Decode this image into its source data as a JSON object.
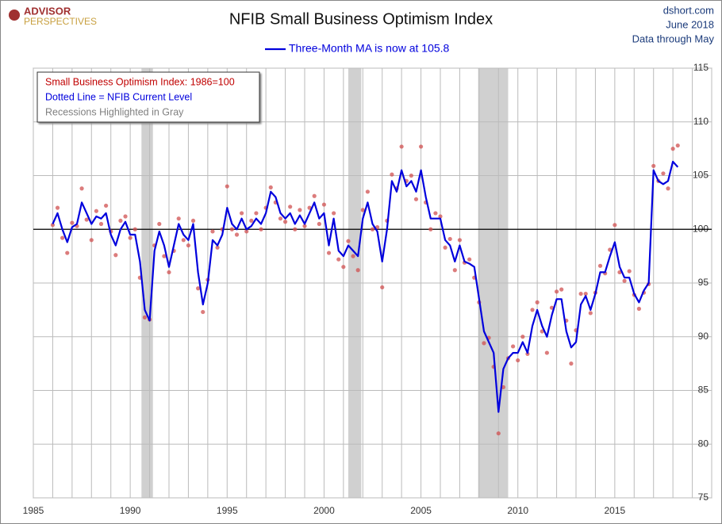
{
  "logo": {
    "line1": "ADVISOR",
    "line2": "PERSPECTIVES"
  },
  "source": {
    "site": "dshort.com",
    "date": "June 2018",
    "note": "Data through May"
  },
  "chart_data": {
    "type": "line",
    "title": "NFIB Small Business Optimism Index",
    "annotations": [
      {
        "text": "Small Business Optimism Index: 1986=100",
        "color": "#c00000"
      },
      {
        "text": "Dotted Line = NFIB Current Level",
        "color": "#0000dd"
      },
      {
        "text": "Recessions Highlighted in Gray",
        "color": "#808080"
      }
    ],
    "xlim": [
      1985,
      2020
    ],
    "xticks": [
      1985,
      1990,
      1995,
      2000,
      2005,
      2010,
      2015
    ],
    "ylim": [
      75,
      115
    ],
    "yticks": [
      75,
      80,
      85,
      90,
      95,
      100,
      105,
      110,
      115
    ],
    "grid": true,
    "refline": 100,
    "recessions": [
      [
        1990.58,
        1991.17
      ],
      [
        2001.25,
        2001.92
      ],
      [
        2007.95,
        2009.5
      ]
    ],
    "series": [
      {
        "kind": "scatter",
        "color": "#d05050",
        "x": [
          1986.0,
          1986.25,
          1986.5,
          1986.75,
          1987.0,
          1987.25,
          1987.5,
          1987.75,
          1988.0,
          1988.25,
          1988.5,
          1988.75,
          1989.0,
          1989.25,
          1989.5,
          1989.75,
          1990.0,
          1990.25,
          1990.5,
          1990.75,
          1991.0,
          1991.25,
          1991.5,
          1991.75,
          1992.0,
          1992.25,
          1992.5,
          1992.75,
          1993.0,
          1993.25,
          1993.5,
          1993.75,
          1994.0,
          1994.25,
          1994.5,
          1994.75,
          1995.0,
          1995.25,
          1995.5,
          1995.75,
          1996.0,
          1996.25,
          1996.5,
          1996.75,
          1997.0,
          1997.25,
          1997.5,
          1997.75,
          1998.0,
          1998.25,
          1998.5,
          1998.75,
          1999.0,
          1999.25,
          1999.5,
          1999.75,
          2000.0,
          2000.25,
          2000.5,
          2000.75,
          2001.0,
          2001.25,
          2001.5,
          2001.75,
          2002.0,
          2002.25,
          2002.5,
          2002.75,
          2003.0,
          2003.25,
          2003.5,
          2003.75,
          2004.0,
          2004.25,
          2004.5,
          2004.75,
          2005.0,
          2005.25,
          2005.5,
          2005.75,
          2006.0,
          2006.25,
          2006.5,
          2006.75,
          2007.0,
          2007.25,
          2007.5,
          2007.75,
          2008.0,
          2008.25,
          2008.5,
          2008.75,
          2009.0,
          2009.25,
          2009.5,
          2009.75,
          2010.0,
          2010.25,
          2010.5,
          2010.75,
          2011.0,
          2011.25,
          2011.5,
          2011.75,
          2012.0,
          2012.25,
          2012.5,
          2012.75,
          2013.0,
          2013.25,
          2013.5,
          2013.75,
          2014.0,
          2014.25,
          2014.5,
          2014.75,
          2015.0,
          2015.25,
          2015.5,
          2015.75,
          2016.0,
          2016.25,
          2016.5,
          2016.75,
          2017.0,
          2017.25,
          2017.5,
          2017.75,
          2018.0,
          2018.25
        ],
        "values": [
          100.4,
          102,
          99.2,
          97.8,
          100.6,
          100.3,
          103.8,
          100.9,
          99,
          101.7,
          100.5,
          102.2,
          99.8,
          97.6,
          100.8,
          101.2,
          99.2,
          100,
          95.5,
          91.8,
          91.6,
          98.5,
          100.5,
          97.5,
          96,
          98,
          101,
          99,
          98.5,
          100.8,
          94.5,
          92.3,
          95.3,
          99.8,
          98.3,
          100,
          104,
          100,
          99.5,
          101.5,
          99.8,
          100.8,
          101.5,
          100,
          102,
          103.9,
          102.5,
          101,
          100.7,
          102.1,
          100,
          101.8,
          100.3,
          102,
          103.1,
          100.5,
          102.3,
          97.8,
          101.5,
          97.2,
          96.5,
          98.9,
          97.5,
          96.2,
          101.8,
          103.5,
          100,
          100.2,
          94.6,
          100.8,
          105.1,
          103.8,
          107.7,
          104.5,
          105,
          102.8,
          107.7,
          102.5,
          100,
          101.5,
          101.2,
          98.3,
          99.1,
          96.2,
          99,
          96.9,
          97.2,
          95.5,
          93.2,
          89.4,
          89.9,
          87.2,
          81,
          85.3,
          88,
          89.1,
          87.8,
          90,
          88.4,
          92.5,
          93.2,
          90.5,
          88.5,
          92.7,
          94.2,
          94.4,
          91.5,
          87.5,
          90.6,
          94,
          94,
          92.2,
          94.1,
          96.6,
          95.9,
          98.1,
          100.4,
          96,
          95.2,
          96.1,
          93.9,
          92.6,
          94.1,
          94.9,
          105.9,
          104.5,
          105.2,
          103.8,
          107.5,
          107.8
        ]
      },
      {
        "kind": "line",
        "name": "Three-Month MA is now at 105.8",
        "color": "#0000dd",
        "x": [
          1986.0,
          1986.25,
          1986.5,
          1986.75,
          1987.0,
          1987.25,
          1987.5,
          1987.75,
          1988.0,
          1988.25,
          1988.5,
          1988.75,
          1989.0,
          1989.25,
          1989.5,
          1989.75,
          1990.0,
          1990.25,
          1990.5,
          1990.75,
          1991.0,
          1991.25,
          1991.5,
          1991.75,
          1992.0,
          1992.25,
          1992.5,
          1992.75,
          1993.0,
          1993.25,
          1993.5,
          1993.75,
          1994.0,
          1994.25,
          1994.5,
          1994.75,
          1995.0,
          1995.25,
          1995.5,
          1995.75,
          1996.0,
          1996.25,
          1996.5,
          1996.75,
          1997.0,
          1997.25,
          1997.5,
          1997.75,
          1998.0,
          1998.25,
          1998.5,
          1998.75,
          1999.0,
          1999.25,
          1999.5,
          1999.75,
          2000.0,
          2000.25,
          2000.5,
          2000.75,
          2001.0,
          2001.25,
          2001.5,
          2001.75,
          2002.0,
          2002.25,
          2002.5,
          2002.75,
          2003.0,
          2003.25,
          2003.5,
          2003.75,
          2004.0,
          2004.25,
          2004.5,
          2004.75,
          2005.0,
          2005.25,
          2005.5,
          2005.75,
          2006.0,
          2006.25,
          2006.5,
          2006.75,
          2007.0,
          2007.25,
          2007.5,
          2007.75,
          2008.0,
          2008.25,
          2008.5,
          2008.75,
          2009.0,
          2009.25,
          2009.5,
          2009.75,
          2010.0,
          2010.25,
          2010.5,
          2010.75,
          2011.0,
          2011.25,
          2011.5,
          2011.75,
          2012.0,
          2012.25,
          2012.5,
          2012.75,
          2013.0,
          2013.25,
          2013.5,
          2013.75,
          2014.0,
          2014.25,
          2014.5,
          2014.75,
          2015.0,
          2015.25,
          2015.5,
          2015.75,
          2016.0,
          2016.25,
          2016.5,
          2016.75,
          2017.0,
          2017.25,
          2017.5,
          2017.75,
          2018.0,
          2018.25
        ],
        "values": [
          100.5,
          101.5,
          100,
          98.8,
          100.2,
          100.5,
          102.5,
          101.5,
          100.5,
          101.2,
          101,
          101.5,
          99.5,
          98.5,
          100,
          100.7,
          99.5,
          99.5,
          97,
          92.5,
          91.5,
          98,
          99.8,
          98.5,
          96.5,
          98.5,
          100.5,
          99.5,
          99,
          100.5,
          96,
          93,
          95,
          99,
          98.5,
          99.5,
          102,
          100.5,
          100,
          101,
          100,
          100.3,
          101,
          100.5,
          101.5,
          103.5,
          103,
          101.5,
          101,
          101.5,
          100.5,
          101.3,
          100.5,
          101.5,
          102.5,
          101,
          101.5,
          98.5,
          101,
          98,
          97.5,
          98.5,
          98,
          97.5,
          101,
          102.5,
          100.5,
          99.8,
          97,
          100,
          104.5,
          103.5,
          105.5,
          104,
          104.5,
          103.5,
          105.5,
          103,
          101,
          101,
          101,
          99,
          98.5,
          97,
          98.5,
          97,
          96.8,
          96.5,
          93.5,
          90.5,
          89.5,
          88.5,
          83,
          87,
          88,
          88.5,
          88.5,
          89.5,
          88.5,
          91,
          92.5,
          91,
          90,
          92,
          93.5,
          93.5,
          90.5,
          89,
          89.5,
          93,
          93.8,
          92.5,
          94,
          96,
          96,
          97.5,
          98.8,
          96.5,
          95.5,
          95.5,
          94,
          93.2,
          94.3,
          95,
          105.5,
          104.5,
          104.2,
          104.5,
          106.3,
          105.8
        ]
      }
    ]
  }
}
